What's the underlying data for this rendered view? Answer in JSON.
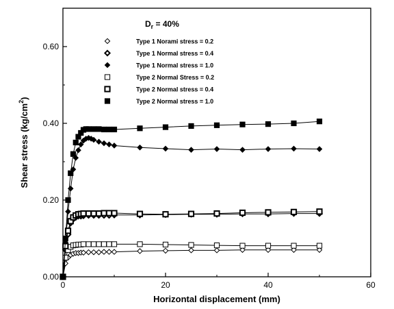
{
  "chart_data": {
    "type": "line",
    "annotation": {
      "main": "D",
      "sub": "r",
      "rest": " = 40%"
    },
    "xlabel": "Horizontal displacement (mm)",
    "ylabel": {
      "text": "Shear stress (kg/cm",
      "sup": "2",
      "close": ")"
    },
    "xlim": [
      0,
      60
    ],
    "ylim": [
      0,
      0.7
    ],
    "xticks": [
      0,
      20,
      40,
      60
    ],
    "xtick_labels": [
      "0",
      "20",
      "40",
      "60"
    ],
    "yticks": [
      0,
      0.2,
      0.4,
      0.6
    ],
    "ytick_labels": [
      "0.00",
      "0.20",
      "0.40",
      "0.60"
    ],
    "grid": false,
    "legend_position": "top-center",
    "series": [
      {
        "name": "Type 1 Norami stress = 0.2",
        "marker": "diamond-open",
        "x": [
          0,
          0.5,
          1,
          1.5,
          2,
          2.5,
          3,
          3.5,
          4,
          5,
          6,
          7,
          8,
          9,
          10,
          15,
          20,
          25,
          30,
          35,
          40,
          45,
          50
        ],
        "y": [
          0,
          0.035,
          0.05,
          0.057,
          0.06,
          0.062,
          0.062,
          0.063,
          0.063,
          0.064,
          0.064,
          0.064,
          0.065,
          0.065,
          0.065,
          0.067,
          0.068,
          0.069,
          0.069,
          0.07,
          0.07,
          0.07,
          0.07
        ]
      },
      {
        "name": "Type 1 Normal stress = 0.4",
        "marker": "diamond-bold",
        "x": [
          0,
          0.5,
          1,
          1.5,
          2,
          2.5,
          3,
          3.5,
          4,
          5,
          6,
          7,
          8,
          9,
          10,
          15,
          20,
          25,
          30,
          35,
          40,
          45,
          50
        ],
        "y": [
          0,
          0.07,
          0.11,
          0.14,
          0.15,
          0.155,
          0.158,
          0.158,
          0.159,
          0.16,
          0.16,
          0.16,
          0.16,
          0.16,
          0.161,
          0.161,
          0.162,
          0.163,
          0.163,
          0.164,
          0.164,
          0.165,
          0.165
        ]
      },
      {
        "name": "Type 1 Normal stress = 1.0",
        "marker": "diamond-filled",
        "x": [
          0,
          0.5,
          1,
          1.5,
          2,
          2.5,
          3,
          3.5,
          4,
          4.5,
          5,
          5.5,
          6,
          7,
          8,
          9,
          10,
          15,
          20,
          25,
          30,
          35,
          40,
          45,
          50
        ],
        "y": [
          0,
          0.09,
          0.17,
          0.23,
          0.28,
          0.31,
          0.33,
          0.345,
          0.355,
          0.36,
          0.362,
          0.36,
          0.357,
          0.352,
          0.348,
          0.345,
          0.342,
          0.337,
          0.334,
          0.331,
          0.333,
          0.331,
          0.333,
          0.334,
          0.333
        ]
      },
      {
        "name": "Type 2 Normal Stress = 0.2",
        "marker": "square-open",
        "x": [
          0,
          0.5,
          1,
          1.5,
          2,
          2.5,
          3,
          3.5,
          4,
          5,
          6,
          7,
          8,
          9,
          10,
          15,
          20,
          25,
          30,
          35,
          40,
          45,
          50
        ],
        "y": [
          0,
          0.05,
          0.07,
          0.078,
          0.082,
          0.083,
          0.084,
          0.084,
          0.085,
          0.085,
          0.085,
          0.085,
          0.085,
          0.085,
          0.085,
          0.085,
          0.084,
          0.083,
          0.082,
          0.081,
          0.081,
          0.081,
          0.081
        ]
      },
      {
        "name": "Type 2 Normal stress = 0.4",
        "marker": "square-bold",
        "x": [
          0,
          0.5,
          1,
          1.5,
          2,
          2.5,
          3,
          3.5,
          4,
          5,
          6,
          7,
          8,
          9,
          10,
          15,
          20,
          25,
          30,
          35,
          40,
          45,
          50
        ],
        "y": [
          0,
          0.08,
          0.12,
          0.145,
          0.155,
          0.16,
          0.163,
          0.164,
          0.165,
          0.165,
          0.165,
          0.165,
          0.166,
          0.166,
          0.166,
          0.164,
          0.163,
          0.164,
          0.165,
          0.167,
          0.168,
          0.169,
          0.17
        ]
      },
      {
        "name": "Type 2 Normal stress = 1.0",
        "marker": "square-filled",
        "x": [
          0,
          0.5,
          1,
          1.5,
          2,
          2.5,
          3,
          3.5,
          4,
          4.5,
          5,
          6,
          7,
          8,
          9,
          10,
          15,
          20,
          25,
          30,
          35,
          40,
          45,
          50
        ],
        "y": [
          0,
          0.1,
          0.2,
          0.27,
          0.32,
          0.35,
          0.365,
          0.375,
          0.383,
          0.385,
          0.385,
          0.385,
          0.385,
          0.384,
          0.384,
          0.384,
          0.387,
          0.39,
          0.393,
          0.395,
          0.397,
          0.398,
          0.4,
          0.405
        ]
      }
    ]
  }
}
